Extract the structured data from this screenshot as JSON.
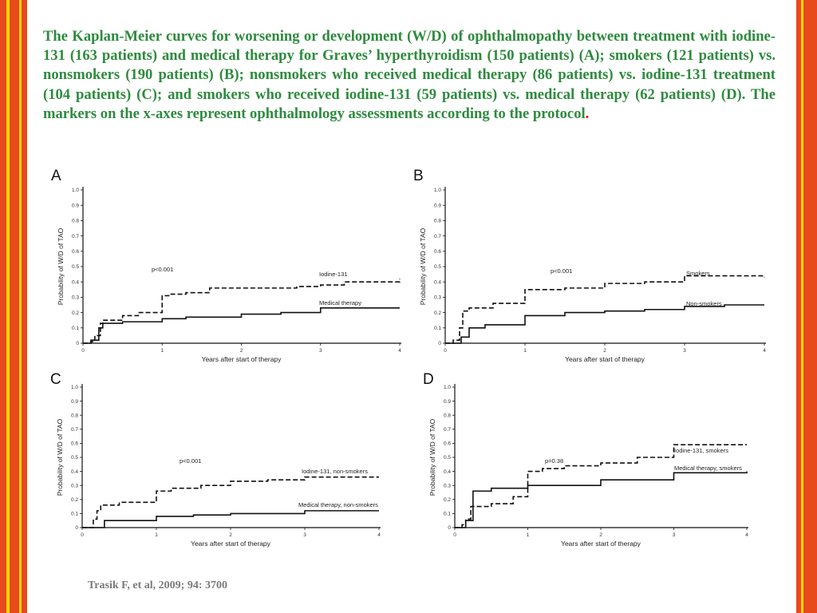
{
  "heading": {
    "text": "The Kaplan-Meier curves for worsening or development (W/D) of ophthalmopathy  between treatment with iodine-131 (163 patients) and medical therapy for Graves’ hyperthyroidism (150 patients) (A); smokers (121 patients) vs. nonsmokers (190  patients) (B); nonsmokers who received medical therapy (86 patients) vs. iodine-131 treatment (104 patients) (C); and smokers who received iodine-131 (59 patients) vs. medical therapy (62 patients) (D). The markers on the x-axes represent ophthalmology assessments according to the protocol",
    "end_mark": "."
  },
  "citation": "Trasik F, et al, 2009; 94: 3700",
  "colors": {
    "heading": "#2e8b3e",
    "end_mark": "#e8000b",
    "citation": "#7a7a7a",
    "frame": "#e8491d",
    "frame_stripe": "#ffd700"
  },
  "chart_data": [
    {
      "panel_label": "A",
      "type": "line",
      "xlabel": "Years after start of therapy",
      "ylabel": "Probability of W/D of TAO",
      "xlim": [
        0,
        4
      ],
      "ylim": [
        0,
        1.0
      ],
      "xticks": [
        "0",
        "1",
        "2",
        "3",
        "4"
      ],
      "yticks": [
        "0",
        "0.1",
        "0.2",
        "0.3",
        "0.4",
        "0.5",
        "0.6",
        "0.7",
        "0.8",
        "0.9",
        "1.0"
      ],
      "pvalue": "p<0.001",
      "series": [
        {
          "name": "Iodine-131",
          "style": "dashed",
          "x": [
            0,
            0.1,
            0.15,
            0.22,
            0.25,
            0.5,
            0.7,
            1.0,
            1.1,
            1.3,
            1.6,
            2.0,
            2.7,
            3.0,
            3.3,
            4.0
          ],
          "y": [
            0,
            0.01,
            0.05,
            0.13,
            0.15,
            0.18,
            0.2,
            0.31,
            0.32,
            0.33,
            0.36,
            0.36,
            0.37,
            0.38,
            0.4,
            0.42
          ]
        },
        {
          "name": "Medical therapy",
          "style": "solid",
          "x": [
            0,
            0.1,
            0.2,
            0.25,
            0.5,
            1.0,
            1.3,
            2.0,
            2.5,
            3.0,
            4.0
          ],
          "y": [
            0,
            0.02,
            0.1,
            0.13,
            0.14,
            0.16,
            0.17,
            0.19,
            0.2,
            0.23,
            0.23
          ]
        }
      ]
    },
    {
      "panel_label": "B",
      "type": "line",
      "xlabel": "Years after start of therapy",
      "ylabel": "Probability of W/D of TAO",
      "xlim": [
        0,
        4
      ],
      "ylim": [
        0,
        1.0
      ],
      "xticks": [
        "0",
        "1",
        "2",
        "3",
        "4"
      ],
      "yticks": [
        "0",
        "0.1",
        "0.2",
        "0.3",
        "0.4",
        "0.5",
        "0.6",
        "0.7",
        "0.8",
        "0.9",
        "1.0"
      ],
      "pvalue": "p<0.001",
      "series": [
        {
          "name": "Smokers",
          "style": "dashed",
          "x": [
            0,
            0.1,
            0.18,
            0.22,
            0.3,
            0.6,
            1.0,
            1.5,
            2.0,
            2.5,
            3.0,
            4.0
          ],
          "y": [
            0,
            0.02,
            0.1,
            0.21,
            0.23,
            0.26,
            0.35,
            0.36,
            0.39,
            0.4,
            0.44,
            0.43
          ]
        },
        {
          "name": "Non-smokers",
          "style": "solid",
          "x": [
            0,
            0.2,
            0.3,
            0.5,
            1.0,
            1.5,
            2.0,
            2.5,
            3.0,
            3.5,
            4.0
          ],
          "y": [
            0,
            0.04,
            0.1,
            0.12,
            0.18,
            0.2,
            0.21,
            0.22,
            0.24,
            0.25,
            0.25
          ]
        }
      ]
    },
    {
      "panel_label": "C",
      "type": "line",
      "xlabel": "Years after start of therapy",
      "ylabel": "Probability of W/D of TAO",
      "xlim": [
        0,
        4
      ],
      "ylim": [
        0,
        1.0
      ],
      "xticks": [
        "0",
        "1",
        "2",
        "3",
        "4"
      ],
      "yticks": [
        "0",
        "0.1",
        "0.2",
        "0.3",
        "0.4",
        "0.5",
        "0.6",
        "0.7",
        "0.8",
        "0.9",
        "1.0"
      ],
      "pvalue": "p<0.001",
      "series": [
        {
          "name": "Iodine-131, non-smokers",
          "style": "dashed",
          "x": [
            0,
            0.15,
            0.2,
            0.25,
            0.5,
            1.0,
            1.2,
            1.6,
            2.0,
            2.5,
            3.0,
            4.0
          ],
          "y": [
            0,
            0.06,
            0.12,
            0.16,
            0.18,
            0.26,
            0.28,
            0.3,
            0.33,
            0.34,
            0.36,
            0.36
          ]
        },
        {
          "name": "Medical therapy, non-smokers",
          "style": "solid",
          "x": [
            0,
            0.3,
            1.0,
            1.5,
            2.0,
            3.0,
            4.0
          ],
          "y": [
            0,
            0.05,
            0.08,
            0.09,
            0.1,
            0.12,
            0.12
          ]
        }
      ]
    },
    {
      "panel_label": "D",
      "type": "line",
      "xlabel": "Years after start of therapy",
      "ylabel": "Probability of W/D of TAO",
      "xlim": [
        0,
        4
      ],
      "ylim": [
        0,
        1.0
      ],
      "xticks": [
        "0",
        "1",
        "2",
        "3",
        "4"
      ],
      "yticks": [
        "0",
        "0.1",
        "0.2",
        "0.3",
        "0.4",
        "0.5",
        "0.6",
        "0.7",
        "0.8",
        "0.9",
        "1.0"
      ],
      "pvalue": "p=0.38",
      "series": [
        {
          "name": "Iodine-131, smokers",
          "style": "dashed",
          "x": [
            0,
            0.1,
            0.15,
            0.22,
            0.5,
            0.8,
            1.0,
            1.2,
            1.5,
            2.0,
            2.5,
            3.0,
            4.0
          ],
          "y": [
            0,
            0.02,
            0.06,
            0.15,
            0.17,
            0.22,
            0.4,
            0.42,
            0.44,
            0.46,
            0.5,
            0.59,
            0.59
          ]
        },
        {
          "name": "Medical therapy, smokers",
          "style": "solid",
          "x": [
            0,
            0.15,
            0.25,
            0.5,
            1.0,
            2.0,
            3.0,
            4.0
          ],
          "y": [
            0,
            0.05,
            0.26,
            0.28,
            0.3,
            0.34,
            0.39,
            0.4
          ]
        }
      ]
    }
  ]
}
